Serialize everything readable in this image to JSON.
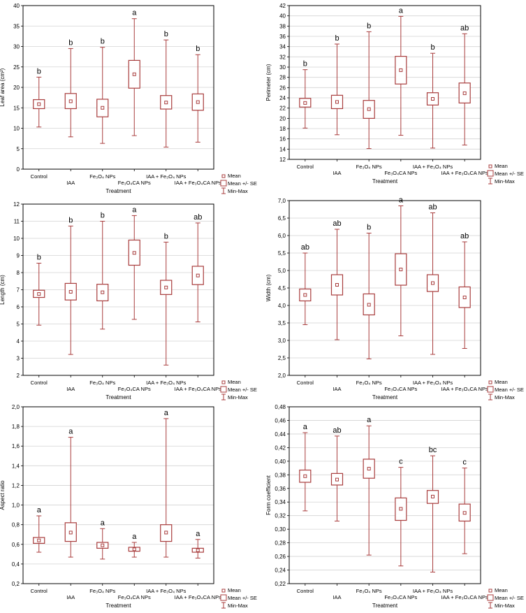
{
  "figure": {
    "colors": {
      "box": "#a83c3c",
      "grid": "#d3d3d3",
      "axis": "#000000"
    },
    "categories": [
      "Control",
      "IAA",
      "Fe₃O₄ NPs",
      "Fe₃O₄CA NPs",
      "IAA + Fe₃O₄ NPs",
      "IAA + Fe₃O₄CA NPs"
    ],
    "xlabel": "Treatment",
    "legend": [
      "Mean",
      "Mean +/- SE",
      "Min-Max"
    ]
  },
  "chart_data": [
    {
      "type": "boxplot",
      "ylabel": "Leaf area (cm²)",
      "ylim": [
        0,
        40
      ],
      "yticks": [
        "0",
        "5",
        "10",
        "15",
        "20",
        "25",
        "30",
        "35",
        "40"
      ],
      "series": [
        {
          "category": "Control",
          "mean": 15.9,
          "se_low": 14.8,
          "se_high": 17.0,
          "min": 10.3,
          "max": 22.5,
          "letter": "b"
        },
        {
          "category": "IAA",
          "mean": 16.6,
          "se_low": 14.8,
          "se_high": 18.5,
          "min": 7.9,
          "max": 29.5,
          "letter": "b"
        },
        {
          "category": "Fe₃O₄ NPs",
          "mean": 15.0,
          "se_low": 12.8,
          "se_high": 17.1,
          "min": 6.3,
          "max": 29.8,
          "letter": "b"
        },
        {
          "category": "Fe₃O₄CA NPs",
          "mean": 23.2,
          "se_low": 19.8,
          "se_high": 26.6,
          "min": 8.2,
          "max": 36.8,
          "letter": "a"
        },
        {
          "category": "IAA + Fe₃O₄ NPs",
          "mean": 16.3,
          "se_low": 14.7,
          "se_high": 18.0,
          "min": 5.4,
          "max": 31.6,
          "letter": "b"
        },
        {
          "category": "IAA + Fe₃O₄CA NPs",
          "mean": 16.4,
          "se_low": 14.4,
          "se_high": 18.4,
          "min": 6.6,
          "max": 28.0,
          "letter": "b"
        }
      ]
    },
    {
      "type": "boxplot",
      "ylabel": "Perimeter (cm)",
      "ylim": [
        12,
        42
      ],
      "yticks": [
        "12",
        "14",
        "16",
        "18",
        "20",
        "22",
        "24",
        "26",
        "28",
        "30",
        "32",
        "34",
        "36",
        "38",
        "40",
        "42"
      ],
      "series": [
        {
          "category": "Control",
          "mean": 23.0,
          "se_low": 22.2,
          "se_high": 23.9,
          "min": 18.1,
          "max": 29.5,
          "letter": "b"
        },
        {
          "category": "IAA",
          "mean": 23.2,
          "se_low": 21.9,
          "se_high": 24.5,
          "min": 16.8,
          "max": 34.5,
          "letter": "b"
        },
        {
          "category": "Fe₃O₄ NPs",
          "mean": 21.8,
          "se_low": 20.0,
          "se_high": 23.5,
          "min": 14.1,
          "max": 36.9,
          "letter": "b"
        },
        {
          "category": "Fe₃O₄CA NPs",
          "mean": 29.4,
          "se_low": 26.7,
          "se_high": 32.1,
          "min": 16.7,
          "max": 39.9,
          "letter": "a"
        },
        {
          "category": "IAA + Fe₃O₄ NPs",
          "mean": 23.8,
          "se_low": 22.6,
          "se_high": 25.0,
          "min": 14.2,
          "max": 32.7,
          "letter": "b"
        },
        {
          "category": "IAA + Fe₃O₄CA NPs",
          "mean": 24.9,
          "se_low": 23.0,
          "se_high": 26.9,
          "min": 14.8,
          "max": 36.5,
          "letter": "ab"
        }
      ]
    },
    {
      "type": "boxplot",
      "ylabel": "Length (cm)",
      "ylim": [
        2,
        12
      ],
      "yticks": [
        "2",
        "3",
        "4",
        "5",
        "6",
        "7",
        "8",
        "9",
        "10",
        "11",
        "12"
      ],
      "series": [
        {
          "category": "Control",
          "mean": 6.75,
          "se_low": 6.55,
          "se_high": 6.97,
          "min": 4.93,
          "max": 8.55,
          "letter": "b"
        },
        {
          "category": "IAA",
          "mean": 6.88,
          "se_low": 6.4,
          "se_high": 7.37,
          "min": 3.22,
          "max": 10.72,
          "letter": "b"
        },
        {
          "category": "Fe₃O₄ NPs",
          "mean": 6.85,
          "se_low": 6.35,
          "se_high": 7.32,
          "min": 4.7,
          "max": 11.0,
          "letter": "b"
        },
        {
          "category": "Fe₃O₄CA NPs",
          "mean": 9.15,
          "se_low": 8.43,
          "se_high": 9.9,
          "min": 5.27,
          "max": 11.33,
          "letter": "a"
        },
        {
          "category": "IAA + Fe₃O₄ NPs",
          "mean": 7.13,
          "se_low": 6.72,
          "se_high": 7.55,
          "min": 2.6,
          "max": 9.78,
          "letter": "b"
        },
        {
          "category": "IAA + Fe₃O₄CA NPs",
          "mean": 7.83,
          "se_low": 7.3,
          "se_high": 8.37,
          "min": 5.12,
          "max": 10.9,
          "letter": "ab"
        }
      ]
    },
    {
      "type": "boxplot",
      "ylabel": "Width (cm)",
      "ylim": [
        2.0,
        7.0
      ],
      "yticks": [
        "2,0",
        "2,5",
        "3,0",
        "3,5",
        "4,0",
        "4,5",
        "5,0",
        "5,5",
        "6,0",
        "6,5",
        "7,0"
      ],
      "series": [
        {
          "category": "Control",
          "mean": 4.3,
          "se_low": 4.13,
          "se_high": 4.47,
          "min": 3.45,
          "max": 5.5,
          "letter": "ab"
        },
        {
          "category": "IAA",
          "mean": 4.59,
          "se_low": 4.3,
          "se_high": 4.88,
          "min": 3.02,
          "max": 6.18,
          "letter": "ab"
        },
        {
          "category": "Fe₃O₄ NPs",
          "mean": 4.02,
          "se_low": 3.73,
          "se_high": 4.33,
          "min": 2.47,
          "max": 6.07,
          "letter": "b"
        },
        {
          "category": "Fe₃O₄CA NPs",
          "mean": 5.03,
          "se_low": 4.58,
          "se_high": 5.48,
          "min": 3.13,
          "max": 6.85,
          "letter": "a"
        },
        {
          "category": "IAA + Fe₃O₄ NPs",
          "mean": 4.64,
          "se_low": 4.4,
          "se_high": 4.88,
          "min": 2.6,
          "max": 6.65,
          "letter": "ab"
        },
        {
          "category": "IAA + Fe₃O₄CA NPs",
          "mean": 4.23,
          "se_low": 3.94,
          "se_high": 4.53,
          "min": 2.77,
          "max": 5.82,
          "letter": "ab"
        }
      ]
    },
    {
      "type": "boxplot",
      "ylabel": "Aspect ratio",
      "ylim": [
        0.2,
        2.0
      ],
      "yticks": [
        "0,2",
        "0,4",
        "0,6",
        "0,8",
        "1,0",
        "1,2",
        "1,4",
        "1,6",
        "1,8",
        "2,0"
      ],
      "series": [
        {
          "category": "Control",
          "mean": 0.64,
          "se_low": 0.61,
          "se_high": 0.67,
          "min": 0.52,
          "max": 0.89,
          "letter": "a"
        },
        {
          "category": "IAA",
          "mean": 0.72,
          "se_low": 0.63,
          "se_high": 0.82,
          "min": 0.47,
          "max": 1.69,
          "letter": "a"
        },
        {
          "category": "Fe₃O₄ NPs",
          "mean": 0.59,
          "se_low": 0.56,
          "se_high": 0.62,
          "min": 0.45,
          "max": 0.76,
          "letter": "a"
        },
        {
          "category": "Fe₃O₄CA NPs",
          "mean": 0.55,
          "se_low": 0.53,
          "se_high": 0.57,
          "min": 0.47,
          "max": 0.62,
          "letter": "a"
        },
        {
          "category": "IAA + Fe₃O₄ NPs",
          "mean": 0.72,
          "se_low": 0.63,
          "se_high": 0.8,
          "min": 0.47,
          "max": 1.88,
          "letter": "a"
        },
        {
          "category": "IAA + Fe₃O₄CA NPs",
          "mean": 0.54,
          "se_low": 0.52,
          "se_high": 0.56,
          "min": 0.46,
          "max": 0.65,
          "letter": "a"
        }
      ]
    },
    {
      "type": "boxplot",
      "ylabel": "Form coefficient",
      "ylim": [
        0.22,
        0.48
      ],
      "yticks": [
        "0,22",
        "0,24",
        "0,26",
        "0,28",
        "0,30",
        "0,32",
        "0,34",
        "0,36",
        "0,38",
        "0,40",
        "0,42",
        "0,44",
        "0,46",
        "0,48"
      ],
      "series": [
        {
          "category": "Control",
          "mean": 0.378,
          "se_low": 0.369,
          "se_high": 0.387,
          "min": 0.327,
          "max": 0.442,
          "letter": "a"
        },
        {
          "category": "IAA",
          "mean": 0.373,
          "se_low": 0.365,
          "se_high": 0.382,
          "min": 0.312,
          "max": 0.437,
          "letter": "ab"
        },
        {
          "category": "Fe₃O₄ NPs",
          "mean": 0.389,
          "se_low": 0.375,
          "se_high": 0.403,
          "min": 0.262,
          "max": 0.452,
          "letter": "a"
        },
        {
          "category": "Fe₃O₄CA NPs",
          "mean": 0.33,
          "se_low": 0.313,
          "se_high": 0.346,
          "min": 0.246,
          "max": 0.391,
          "letter": "c"
        },
        {
          "category": "IAA + Fe₃O₄ NPs",
          "mean": 0.348,
          "se_low": 0.338,
          "se_high": 0.357,
          "min": 0.237,
          "max": 0.408,
          "letter": "bc"
        },
        {
          "category": "IAA + Fe₃O₄CA NPs",
          "mean": 0.324,
          "se_low": 0.312,
          "se_high": 0.337,
          "min": 0.264,
          "max": 0.39,
          "letter": "c"
        }
      ]
    }
  ]
}
